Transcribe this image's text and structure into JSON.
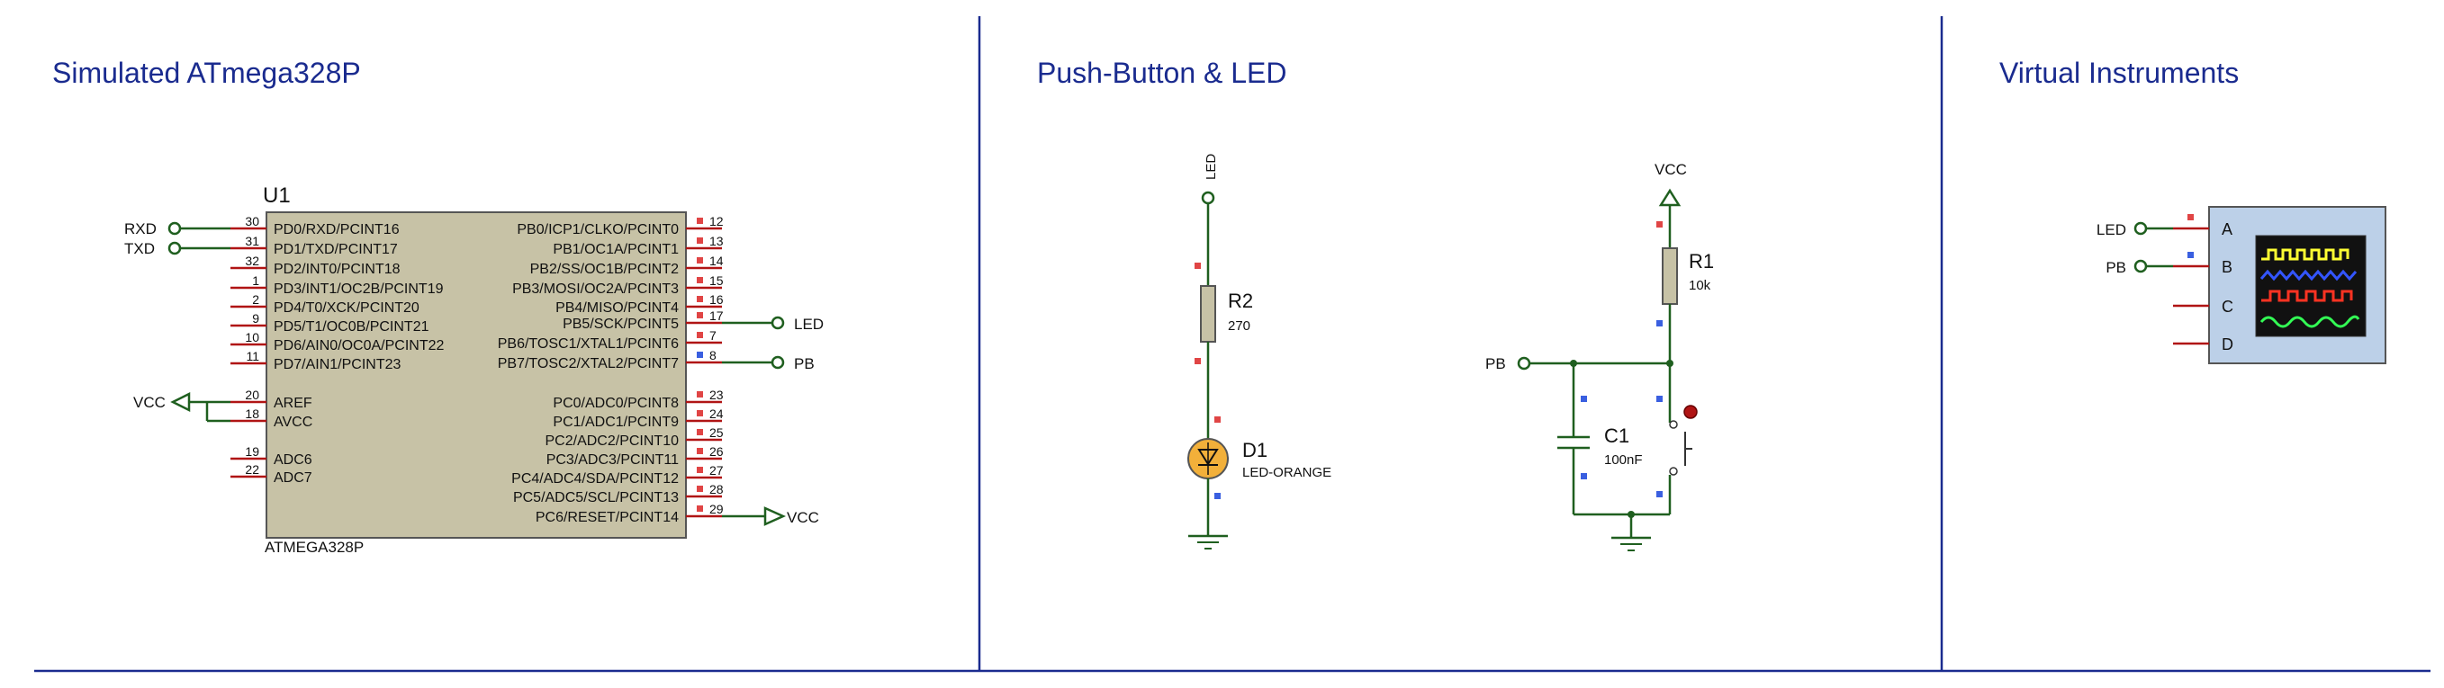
{
  "sections": {
    "mcu_title": "Simulated ATmega328P",
    "button_led_title": "Push-Button & LED",
    "instruments_title": "Virtual Instruments"
  },
  "colors": {
    "title": "#1a2b8f",
    "border": "#1a2b8f",
    "wire": "#1f5f1f",
    "pin": "#b01414",
    "chip_fill": "#c7c2a6",
    "chip_stroke": "#555555",
    "red_marker": "#e04545",
    "blue_marker": "#3a5fe0",
    "led_fill": "#f2b03a",
    "scope_bg": "#bcd0e8",
    "trace_a": "#ffff33",
    "trace_b": "#3355ff",
    "trace_c": "#ff3322",
    "trace_d": "#33ff55"
  },
  "mcu": {
    "ref": "U1",
    "part": "ATMEGA328P",
    "left_pins": [
      {
        "num": "30",
        "label": "PD0/RXD/PCINT16"
      },
      {
        "num": "31",
        "label": "PD1/TXD/PCINT17"
      },
      {
        "num": "32",
        "label": "PD2/INT0/PCINT18"
      },
      {
        "num": "1",
        "label": "PD3/INT1/OC2B/PCINT19"
      },
      {
        "num": "2",
        "label": "PD4/T0/XCK/PCINT20"
      },
      {
        "num": "9",
        "label": "PD5/T1/OC0B/PCINT21"
      },
      {
        "num": "10",
        "label": "PD6/AIN0/OC0A/PCINT22"
      },
      {
        "num": "11",
        "label": "PD7/AIN1/PCINT23"
      },
      {
        "num": "20",
        "label": "AREF"
      },
      {
        "num": "18",
        "label": "AVCC"
      },
      {
        "num": "19",
        "label": "ADC6"
      },
      {
        "num": "22",
        "label": "ADC7"
      }
    ],
    "right_pins": [
      {
        "num": "12",
        "label": "PB0/ICP1/CLKO/PCINT0"
      },
      {
        "num": "13",
        "label": "PB1/OC1A/PCINT1"
      },
      {
        "num": "14",
        "label": "PB2/SS/OC1B/PCINT2"
      },
      {
        "num": "15",
        "label": "PB3/MOSI/OC2A/PCINT3"
      },
      {
        "num": "16",
        "label": "PB4/MISO/PCINT4"
      },
      {
        "num": "17",
        "label": "PB5/SCK/PCINT5"
      },
      {
        "num": "7",
        "label": "PB6/TOSC1/XTAL1/PCINT6"
      },
      {
        "num": "8",
        "label": "PB7/TOSC2/XTAL2/PCINT7"
      },
      {
        "num": "23",
        "label": "PC0/ADC0/PCINT8"
      },
      {
        "num": "24",
        "label": "PC1/ADC1/PCINT9"
      },
      {
        "num": "25",
        "label": "PC2/ADC2/PCINT10"
      },
      {
        "num": "26",
        "label": "PC3/ADC3/PCINT11"
      },
      {
        "num": "27",
        "label": "PC4/ADC4/SDA/PCINT12"
      },
      {
        "num": "28",
        "label": "PC5/ADC5/SCL/PCINT13"
      },
      {
        "num": "29",
        "label": "PC6/RESET/PCINT14"
      }
    ],
    "terminals": {
      "rxd": "RXD",
      "txd": "TXD",
      "vcc_left": "VCC",
      "led": "LED",
      "pb": "PB",
      "vcc_right": "VCC"
    }
  },
  "led_circuit": {
    "terminal": "LED",
    "resistor": {
      "ref": "R2",
      "value": "270"
    },
    "diode": {
      "ref": "D1",
      "value": "LED-ORANGE"
    }
  },
  "button_circuit": {
    "vcc": "VCC",
    "pb_terminal": "PB",
    "resistor": {
      "ref": "R1",
      "value": "10k"
    },
    "capacitor": {
      "ref": "C1",
      "value": "100nF"
    }
  },
  "scope": {
    "inputs": [
      {
        "channel": "A",
        "signal": "LED"
      },
      {
        "channel": "B",
        "signal": "PB"
      },
      {
        "channel": "C",
        "signal": ""
      },
      {
        "channel": "D",
        "signal": ""
      }
    ]
  }
}
